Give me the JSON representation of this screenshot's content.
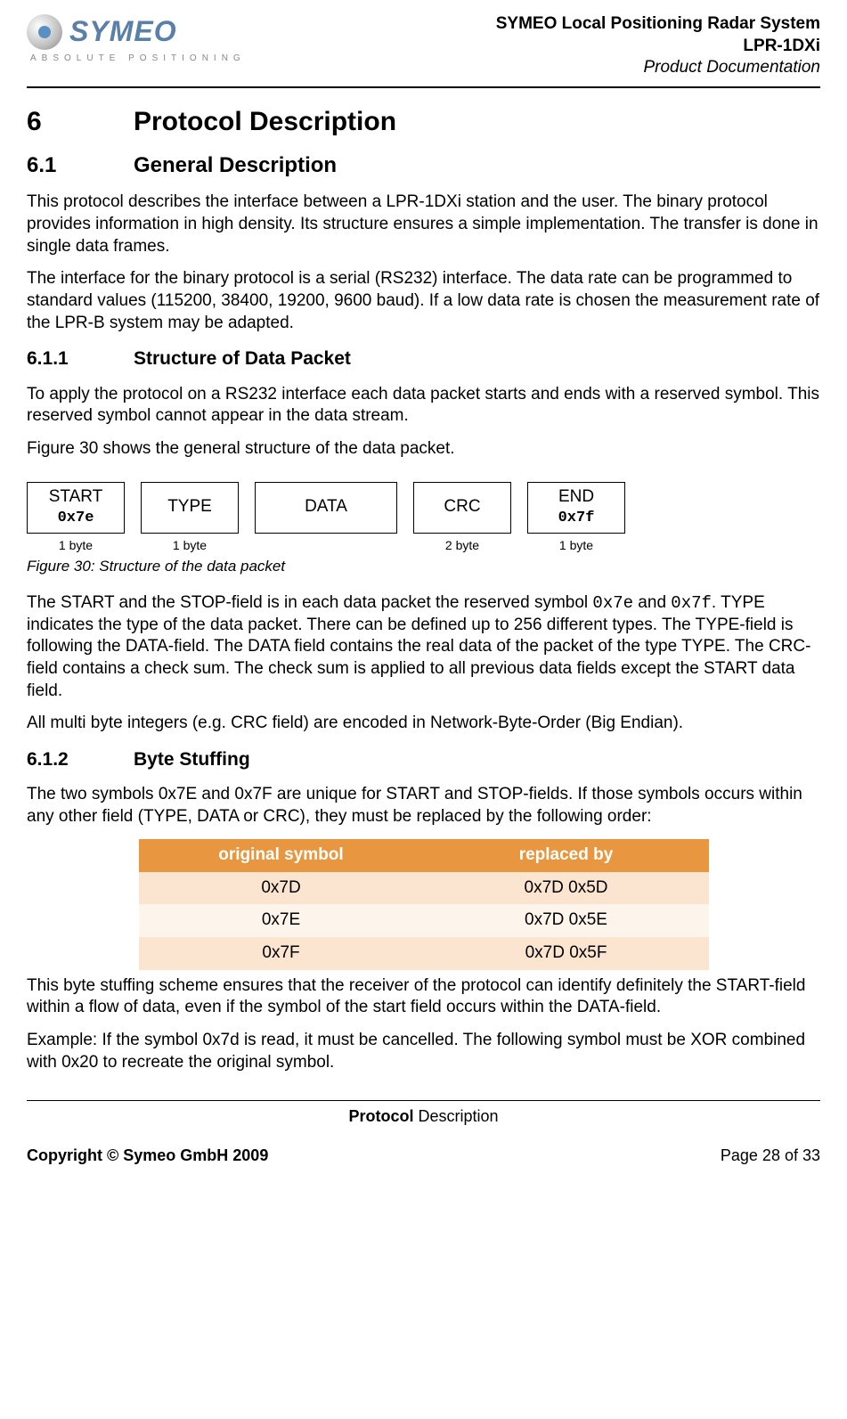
{
  "header": {
    "logo_text": "SYMEO",
    "logo_sub": "ABSOLUTE POSITIONING",
    "right_line1": "SYMEO Local Positioning Radar System",
    "right_line2": "LPR-1DXi",
    "right_line3": "Product Documentation"
  },
  "sections": {
    "h1_num": "6",
    "h1_title": "Protocol Description",
    "h2_num": "6.1",
    "h2_title": "General Description",
    "p1": "This protocol describes the interface between a LPR-1DXi station and the user. The binary protocol provides information in high density. Its structure ensures a simple implementation. The transfer is done in single data frames.",
    "p2": "The interface for the binary protocol is a serial (RS232) interface. The data rate can be programmed to standard values (115200, 38400, 19200, 9600 baud). If a low data rate is chosen the measurement rate of the LPR-B system may be adapted.",
    "h3a_num": "6.1.1",
    "h3a_title": "Structure of Data Packet",
    "p3": "To apply the protocol on a RS232 interface each data packet starts and ends with a reserved symbol. This reserved symbol cannot appear in the data stream.",
    "p4": "Figure 30 shows the general structure of the data packet.",
    "packet": {
      "boxes": [
        {
          "label": "START",
          "hex": "0x7e",
          "size": "1 byte"
        },
        {
          "label": "TYPE",
          "hex": "",
          "size": "1 byte"
        },
        {
          "label": "DATA",
          "hex": "",
          "size": ""
        },
        {
          "label": "CRC",
          "hex": "",
          "size": "2 byte"
        },
        {
          "label": "END",
          "hex": "0x7f",
          "size": "1 byte"
        }
      ],
      "caption": "Figure 30: Structure of the data packet"
    },
    "p5_a": "The START and the STOP-field is in each data packet the reserved symbol ",
    "p5_code1": "0x7e",
    "p5_b": " and ",
    "p5_code2": "0x7f",
    "p5_c": ". TYPE indicates the type of the data packet. There can be defined up to 256 different types. The TYPE-field is following the DATA-field. The DATA field contains the real data of the packet of the type TYPE. The CRC-field contains a check sum. The check sum is applied to all previous data fields except the START data field.",
    "p6": "All multi byte integers (e.g. CRC field) are encoded in Network-Byte-Order (Big Endian).",
    "h3b_num": "6.1.2",
    "h3b_title": "Byte Stuffing",
    "p7": "The two symbols 0x7E and 0x7F are unique for START and STOP-fields. If those symbols occurs within any other field (TYPE, DATA or CRC), they must be replaced by the following order:",
    "table": {
      "header_color": "#e8963f",
      "row_odd_color": "#fbe5d1",
      "row_even_color": "#fdf5ec",
      "col1": "original symbol",
      "col2": "replaced by",
      "rows": [
        {
          "c1": "0x7D",
          "c2": "0x7D 0x5D"
        },
        {
          "c1": "0x7E",
          "c2": "0x7D 0x5E"
        },
        {
          "c1": "0x7F",
          "c2": "0x7D 0x5F"
        }
      ]
    },
    "p8": "This byte stuffing scheme ensures that the receiver of the protocol can identify definitely the START-field within a flow of data, even if the symbol of the start field occurs within the DATA-field.",
    "p9": "Example: If the symbol 0x7d is read, it must be cancelled. The following symbol must be XOR combined with 0x20 to recreate the original symbol."
  },
  "footer": {
    "center_bold": "Protocol",
    "center_rest": " Description",
    "left": "Copyright © Symeo GmbH 2009",
    "right": "Page 28 of 33"
  }
}
